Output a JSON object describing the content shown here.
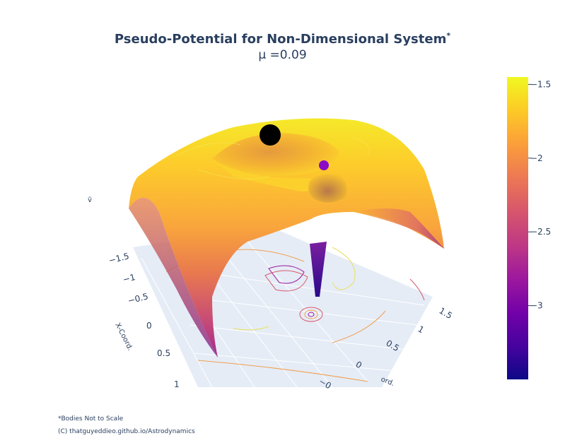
{
  "chart_data": {
    "type": "surface",
    "title": "Pseudo-Potential for Non-Dimensional System",
    "title_superscript": "*",
    "subtitle": "μ =0.09",
    "mu": 0.09,
    "xlabel": "X-Coord.",
    "ylabel": "Y-Coord.",
    "ylabel_visible": "ord.",
    "zlabel": "ṽ",
    "x_ticks": [
      "−1.5",
      "−1",
      "−0.5",
      "0",
      "0.5",
      "1"
    ],
    "y_ticks": [
      "1.5",
      "1",
      "0.5",
      "0",
      "−0"
    ],
    "colorbar": {
      "ticks": [
        {
          "label": "−1.5",
          "value": -1.5
        },
        {
          "label": "−2",
          "value": -2
        },
        {
          "label": "−2.5",
          "value": -2.5
        },
        {
          "label": "−3",
          "value": -3
        }
      ],
      "range": [
        -3.5,
        -1.45
      ],
      "colorscale": [
        "#0d0887",
        "#46039f",
        "#7201a8",
        "#9c179e",
        "#bd3786",
        "#d8576b",
        "#ed7953",
        "#fb9f3a",
        "#fdca26",
        "#f0f921"
      ]
    },
    "bodies": [
      {
        "name": "primary",
        "color": "#000000",
        "x": -0.09,
        "y": 0
      },
      {
        "name": "secondary",
        "color": "#8a0cc7",
        "x": 0.91,
        "y": 0
      }
    ]
  },
  "footnotes": {
    "note": "*Bodies Not to Scale",
    "credit": "(C) thatguyeddieo.github.io/Astrodynamics"
  }
}
